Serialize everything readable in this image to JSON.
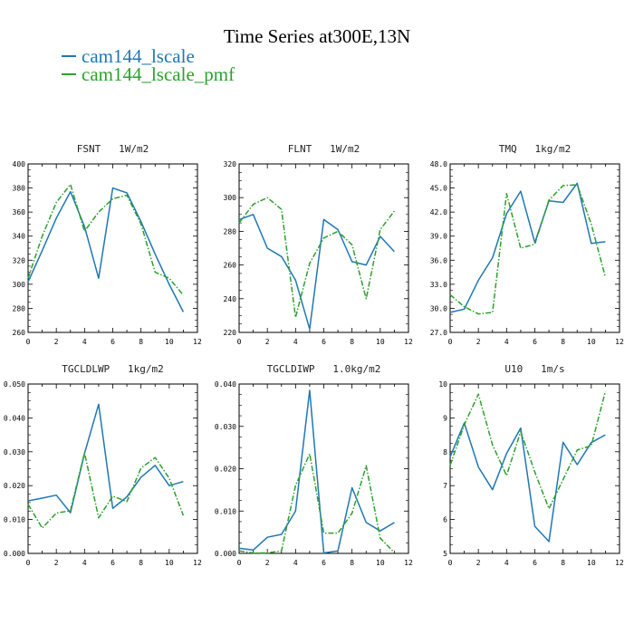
{
  "title": "Time Series at300E,13N",
  "legend": [
    {
      "label": "cam144_lscale",
      "color": "#1f77b4"
    },
    {
      "label": "cam144_lscale_pmf",
      "color": "#2ca02c"
    }
  ],
  "chart_data": [
    {
      "type": "line",
      "title": "FSNT   1W/m2",
      "x": [
        0,
        1,
        2,
        3,
        4,
        5,
        6,
        7,
        8,
        9,
        10,
        11
      ],
      "xlim": [
        0,
        12
      ],
      "xticks": [
        "0",
        "2",
        "4",
        "6",
        "8",
        "10",
        "12"
      ],
      "ylim": [
        260,
        400
      ],
      "yticks": [
        "260",
        "280",
        "300",
        "320",
        "340",
        "360",
        "380",
        "400"
      ],
      "series": [
        {
          "values": [
            302,
            328,
            355,
            377,
            348,
            305,
            380,
            376,
            352,
            325,
            300,
            277
          ]
        },
        {
          "values": [
            305,
            340,
            368,
            383,
            344,
            360,
            371,
            374,
            350,
            310,
            305,
            291
          ]
        }
      ]
    },
    {
      "type": "line",
      "title": "FLNT   1W/m2",
      "x": [
        0,
        1,
        2,
        3,
        4,
        5,
        6,
        7,
        8,
        9,
        10,
        11
      ],
      "xlim": [
        0,
        12
      ],
      "xticks": [
        "0",
        "2",
        "4",
        "6",
        "8",
        "10",
        "12"
      ],
      "ylim": [
        220,
        320
      ],
      "yticks": [
        "220",
        "240",
        "260",
        "280",
        "300",
        "320"
      ],
      "series": [
        {
          "values": [
            287,
            290,
            270,
            265,
            251,
            222,
            287,
            281,
            262,
            260,
            277,
            268
          ]
        },
        {
          "values": [
            285,
            296,
            300,
            293,
            229,
            261,
            276,
            280,
            272,
            240,
            281,
            292
          ]
        }
      ]
    },
    {
      "type": "line",
      "title": "TMQ   1kg/m2",
      "x": [
        0,
        1,
        2,
        3,
        4,
        5,
        6,
        7,
        8,
        9,
        10,
        11
      ],
      "xlim": [
        0,
        12
      ],
      "xticks": [
        "0",
        "2",
        "4",
        "6",
        "8",
        "10",
        "12"
      ],
      "ylim": [
        27,
        48
      ],
      "yticks": [
        "27.0",
        "30.0",
        "33.0",
        "36.0",
        "39.0",
        "42.0",
        "45.0",
        "48.0"
      ],
      "series": [
        {
          "values": [
            29.5,
            29.9,
            33.5,
            36.3,
            41.8,
            44.6,
            38.2,
            43.4,
            43.2,
            45.6,
            38.1,
            38.3
          ]
        },
        {
          "values": [
            31.7,
            30.2,
            29.3,
            29.5,
            44.3,
            37.5,
            38.0,
            43.5,
            45.3,
            45.4,
            40.5,
            33.9
          ]
        }
      ]
    },
    {
      "type": "line",
      "title": "TGCLDLWP   1kg/m2",
      "x": [
        0,
        1,
        2,
        3,
        4,
        5,
        6,
        7,
        8,
        9,
        10,
        11
      ],
      "xlim": [
        0,
        12
      ],
      "xticks": [
        "0",
        "2",
        "4",
        "6",
        "8",
        "10",
        "12"
      ],
      "ylim": [
        0,
        0.05
      ],
      "yticks": [
        "0.000",
        "0.010",
        "0.020",
        "0.030",
        "0.040",
        "0.050"
      ],
      "series": [
        {
          "values": [
            0.0155,
            0.0163,
            0.0172,
            0.012,
            0.0295,
            0.044,
            0.0133,
            0.0167,
            0.0225,
            0.026,
            0.02,
            0.0212
          ]
        },
        {
          "values": [
            0.0145,
            0.0075,
            0.0119,
            0.0126,
            0.0297,
            0.0105,
            0.0169,
            0.0153,
            0.0252,
            0.0283,
            0.0222,
            0.0112
          ]
        }
      ]
    },
    {
      "type": "line",
      "title": "TGCLDIWP   1.0kg/m2",
      "x": [
        0,
        1,
        2,
        3,
        4,
        5,
        6,
        7,
        8,
        9,
        10,
        11
      ],
      "xlim": [
        0,
        12
      ],
      "xticks": [
        "0",
        "2",
        "4",
        "6",
        "8",
        "10",
        "12"
      ],
      "ylim": [
        0,
        0.04
      ],
      "yticks": [
        "0.000",
        "0.010",
        "0.020",
        "0.030",
        "0.040"
      ],
      "series": [
        {
          "values": [
            0.0012,
            0.0008,
            0.0038,
            0.0045,
            0.01,
            0.0385,
            0.0001,
            0.0006,
            0.0155,
            0.0073,
            0.0053,
            0.0073
          ]
        },
        {
          "values": [
            0.0006,
            0.0001,
            0.0001,
            0.0006,
            0.016,
            0.0235,
            0.0048,
            0.0048,
            0.0095,
            0.0207,
            0.0036,
            0.0002
          ]
        }
      ]
    },
    {
      "type": "line",
      "title": "U10   1m/s",
      "x": [
        0,
        1,
        2,
        3,
        4,
        5,
        6,
        7,
        8,
        9,
        10,
        11
      ],
      "xlim": [
        0,
        12
      ],
      "xticks": [
        "0",
        "2",
        "4",
        "6",
        "8",
        "10",
        "12"
      ],
      "ylim": [
        5,
        10
      ],
      "yticks": [
        "5",
        "6",
        "7",
        "8",
        "9",
        "10"
      ],
      "series": [
        {
          "values": [
            7.85,
            8.85,
            7.55,
            6.88,
            7.95,
            8.7,
            5.8,
            5.35,
            8.28,
            7.62,
            8.27,
            8.5
          ]
        },
        {
          "values": [
            7.6,
            8.8,
            9.7,
            8.2,
            7.3,
            8.6,
            7.4,
            6.32,
            7.18,
            8.05,
            8.18,
            9.78
          ]
        }
      ]
    }
  ]
}
